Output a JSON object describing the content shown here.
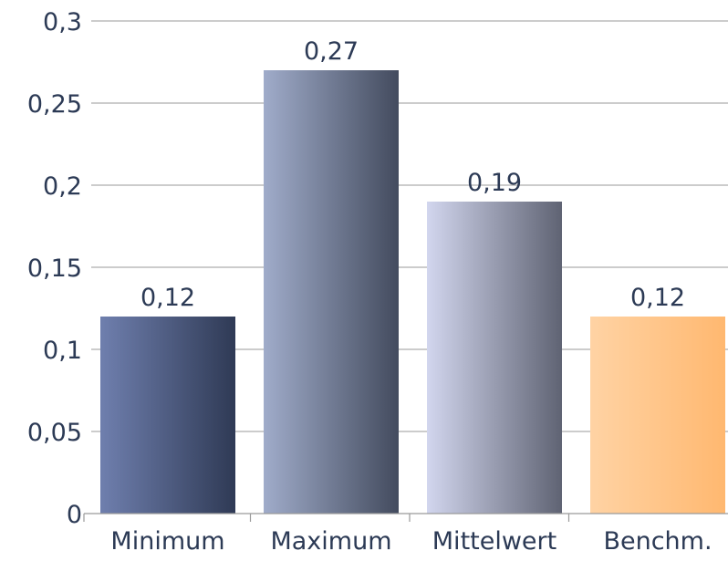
{
  "chart_data": {
    "type": "bar",
    "title": "",
    "xlabel": "",
    "ylabel": "",
    "categories": [
      "Minimum",
      "Maximum",
      "Mittelwert",
      "Benchm."
    ],
    "values": [
      0.12,
      0.27,
      0.19,
      0.12
    ],
    "value_labels": [
      "0,12",
      "0,27",
      "0,19",
      "0,12"
    ],
    "ylim": [
      0,
      0.3
    ],
    "yticks": [
      0,
      0.05,
      0.1,
      0.15,
      0.2,
      0.25,
      0.3
    ],
    "ytick_labels": [
      "0",
      "0,05",
      "0,1",
      "0,15",
      "0,2",
      "0,25",
      "0,3"
    ],
    "grid": true,
    "legend": "none",
    "bar_gradients": [
      [
        "#6f7fae",
        "#2f3a55"
      ],
      [
        "#a0acca",
        "#434b5e"
      ],
      [
        "#d2d6ee",
        "#5f6373"
      ],
      [
        "#ffd3a4",
        "#ffb870"
      ]
    ]
  }
}
